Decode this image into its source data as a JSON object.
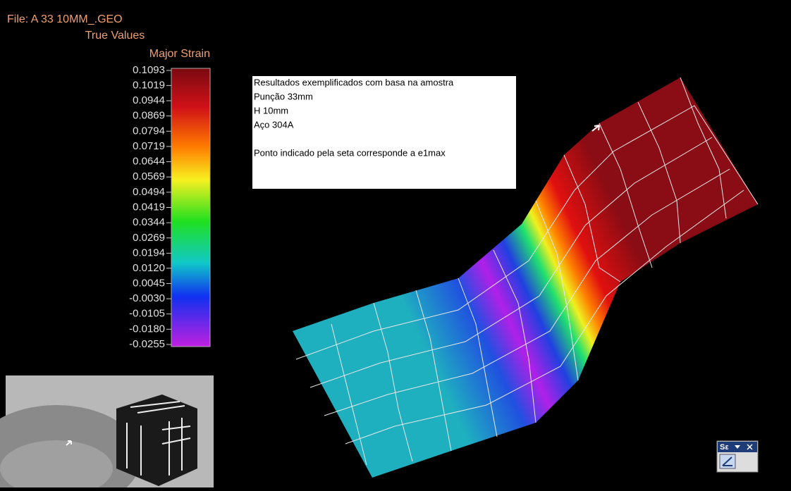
{
  "header": {
    "file": "File: A 33 10MM_.GEO",
    "mode": "True Values"
  },
  "colorbar": {
    "title": "Major Strain",
    "lim": [
      -0.0255,
      0.1093
    ],
    "ticks": [
      0.1093,
      0.1019,
      0.0944,
      0.0869,
      0.0794,
      0.0719,
      0.0644,
      0.0569,
      0.0494,
      0.0419,
      0.0344,
      0.0269,
      0.0194,
      {
        "value": 0.012,
        "label": "0.0120"
      },
      0.0045,
      {
        "value": -0.003,
        "label": "-0.0030"
      },
      -0.0105,
      {
        "value": -0.018,
        "label": "-0.0180"
      },
      -0.0255
    ]
  },
  "info_box": {
    "lines": [
      "Resultados exemplificados com basa na amostra",
      "Punção 33mm",
      "H 10mm",
      "Aço 304A"
    ],
    "note": "Ponto indicado pela seta corresponde a e1max"
  },
  "toolbar": {
    "title": "Sε"
  }
}
